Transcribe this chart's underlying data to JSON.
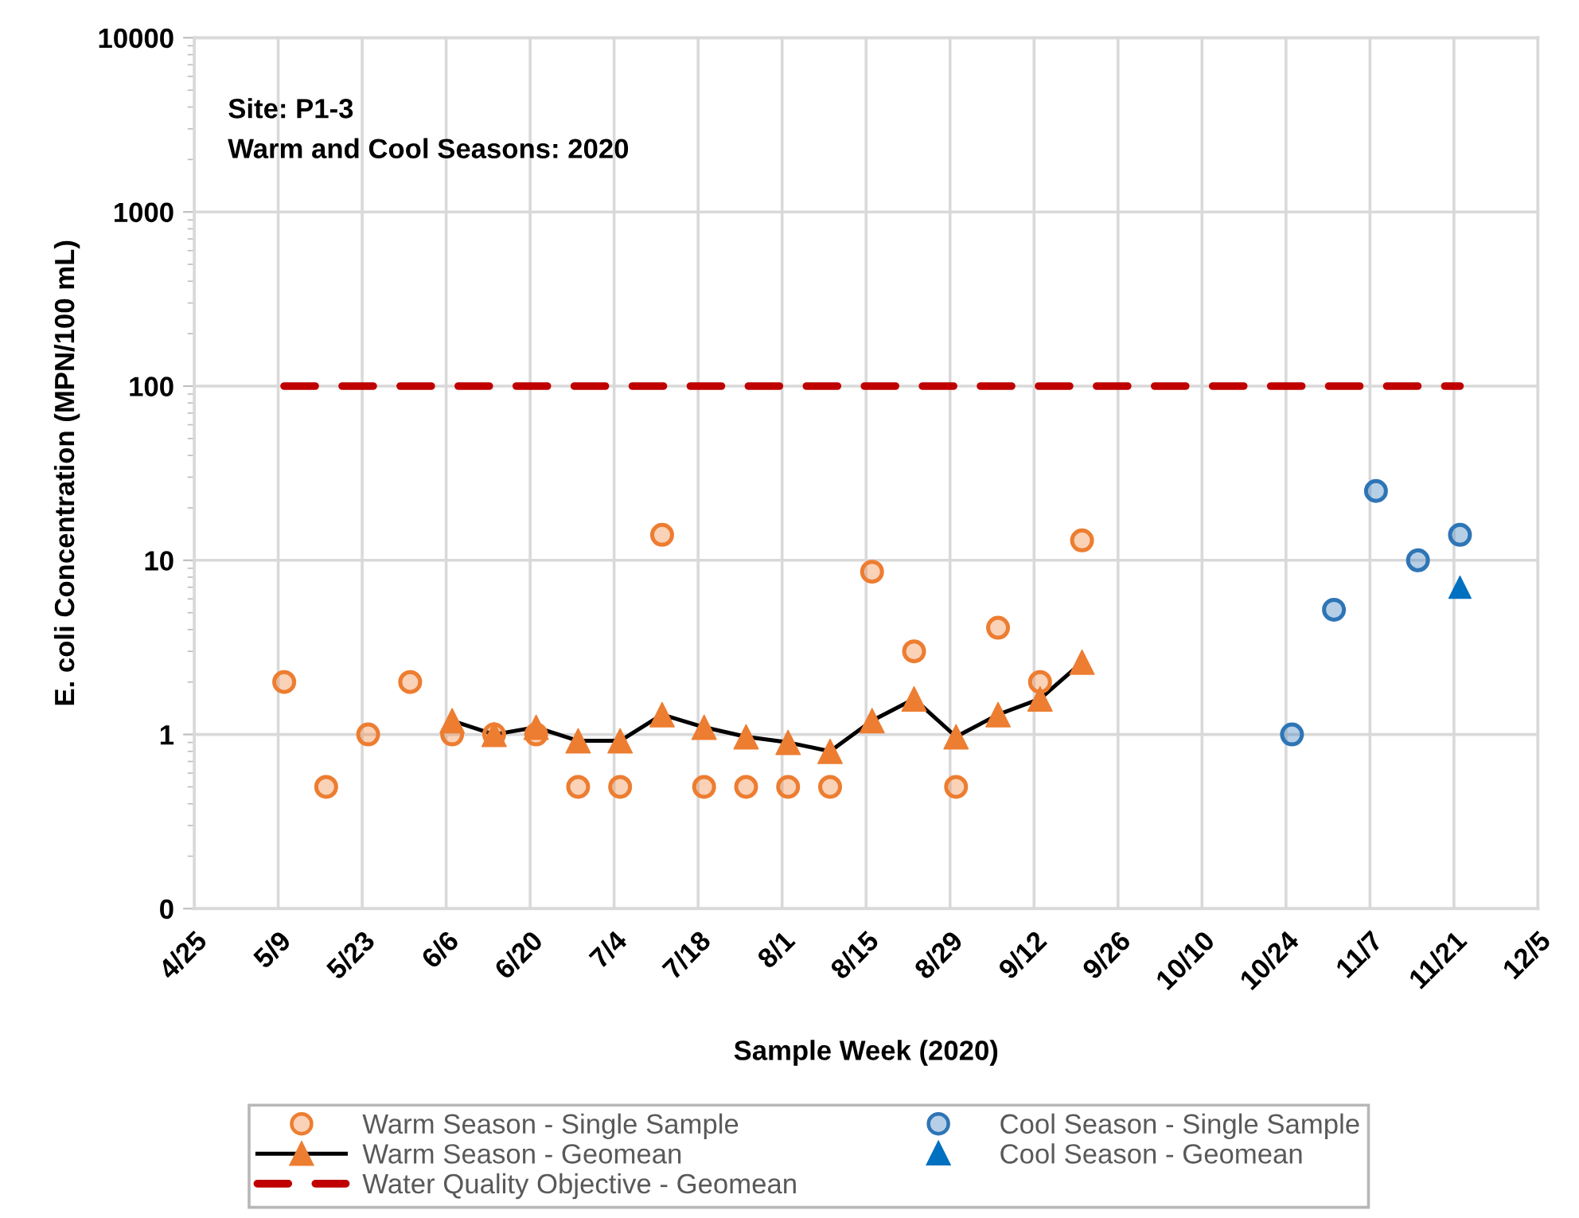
{
  "chart_data": {
    "type": "scatter",
    "xlabel": "Sample Week (2020)",
    "ylabel": "E. coli Concentration (MPN/100 mL)",
    "annotations": [
      "Site: P1-3",
      "Warm and Cool Seasons: 2020"
    ],
    "xlim": [
      "2020-04-25",
      "2020-12-05"
    ],
    "xticks": [
      {
        "value": "2020-04-25",
        "label": "4/25"
      },
      {
        "value": "2020-05-09",
        "label": "5/9"
      },
      {
        "value": "2020-05-23",
        "label": "5/23"
      },
      {
        "value": "2020-06-06",
        "label": "6/6"
      },
      {
        "value": "2020-06-20",
        "label": "6/20"
      },
      {
        "value": "2020-07-04",
        "label": "7/4"
      },
      {
        "value": "2020-07-18",
        "label": "7/18"
      },
      {
        "value": "2020-08-01",
        "label": "8/1"
      },
      {
        "value": "2020-08-15",
        "label": "8/15"
      },
      {
        "value": "2020-08-29",
        "label": "8/29"
      },
      {
        "value": "2020-09-12",
        "label": "9/12"
      },
      {
        "value": "2020-09-26",
        "label": "9/26"
      },
      {
        "value": "2020-10-10",
        "label": "10/10"
      },
      {
        "value": "2020-10-24",
        "label": "10/24"
      },
      {
        "value": "2020-11-07",
        "label": "11/7"
      },
      {
        "value": "2020-11-21",
        "label": "11/21"
      },
      {
        "value": "2020-12-05",
        "label": "12/5"
      }
    ],
    "ylim": [
      0.1,
      10000
    ],
    "yticks": [
      {
        "value": 0.1,
        "label": "0"
      },
      1,
      10,
      100,
      1000,
      10000
    ],
    "log": true,
    "grid": true,
    "legend": "bottom",
    "series": [
      {
        "name": "Warm Season - Single Sample",
        "marker": "circle",
        "color": "#ed7d31",
        "x": [
          "2020-05-10",
          "2020-05-17",
          "2020-05-24",
          "2020-05-31",
          "2020-06-07",
          "2020-06-14",
          "2020-06-21",
          "2020-06-28",
          "2020-07-05",
          "2020-07-12",
          "2020-07-19",
          "2020-07-26",
          "2020-08-02",
          "2020-08-09",
          "2020-08-16",
          "2020-08-23",
          "2020-08-30",
          "2020-09-06",
          "2020-09-13",
          "2020-09-20"
        ],
        "values": [
          2,
          0.5,
          1,
          2,
          1,
          1,
          1,
          0.5,
          0.5,
          14,
          0.5,
          0.5,
          0.5,
          0.5,
          8.6,
          3,
          0.5,
          4.1,
          2,
          13
        ]
      },
      {
        "name": "Warm Season - Geomean",
        "type": "line",
        "marker": "triangle",
        "line_style": "solid",
        "color": "#000000",
        "colors": [
          "#ed7d31",
          "#ed7d31",
          "#ed7d31",
          "#ed7d31",
          "#ed7d31",
          "#ed7d31",
          "#ed7d31",
          "#ed7d31",
          "#ed7d31",
          "#ed7d31",
          "#ed7d31",
          "#ed7d31",
          "#ed7d31",
          "#ed7d31",
          "#ed7d31",
          "#ed7d31"
        ],
        "x": [
          "2020-06-07",
          "2020-06-14",
          "2020-06-21",
          "2020-06-28",
          "2020-07-05",
          "2020-07-12",
          "2020-07-19",
          "2020-07-26",
          "2020-08-02",
          "2020-08-09",
          "2020-08-16",
          "2020-08-23",
          "2020-08-30",
          "2020-09-06",
          "2020-09-13",
          "2020-09-20"
        ],
        "values": [
          1.2,
          1.0,
          1.1,
          0.92,
          0.92,
          1.3,
          1.1,
          0.97,
          0.9,
          0.8,
          1.2,
          1.6,
          0.97,
          1.3,
          1.6,
          2.6
        ]
      },
      {
        "name": "Water Quality Objective - Geomean",
        "type": "line",
        "marker": "none",
        "line_style": "dashed",
        "color": "#c00000",
        "x": [
          "2020-05-10",
          "2020-11-22"
        ],
        "values": [
          100,
          100
        ]
      },
      {
        "name": "Cool Season - Single Sample",
        "marker": "circle",
        "color": "#2e75b6",
        "x": [
          "2020-10-25",
          "2020-11-01",
          "2020-11-08",
          "2020-11-15",
          "2020-11-22"
        ],
        "values": [
          1,
          5.2,
          25,
          10,
          14
        ]
      },
      {
        "name": "Cool Season - Geomean",
        "marker": "triangle",
        "color": "#0070c0",
        "x": [
          "2020-11-22"
        ],
        "values": [
          7
        ]
      }
    ]
  }
}
